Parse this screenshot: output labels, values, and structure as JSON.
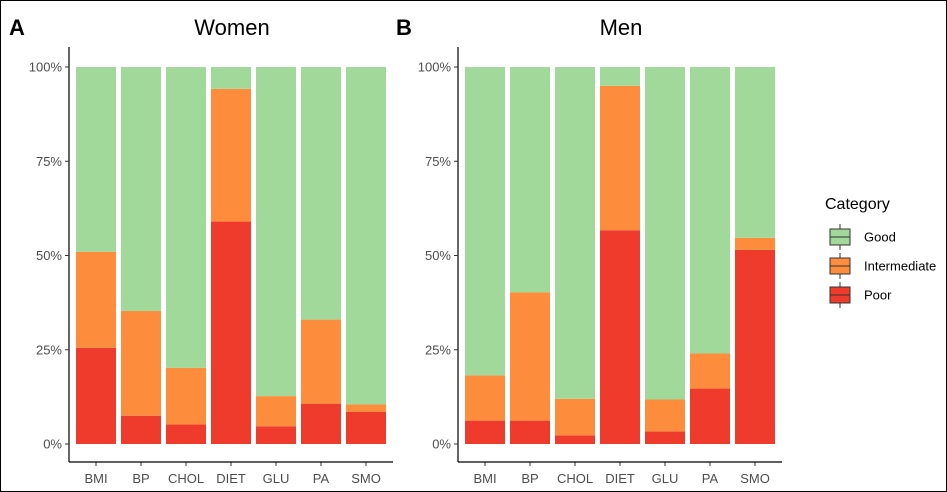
{
  "chart_data": [
    {
      "type": "bar",
      "stacked": true,
      "panel_label": "A",
      "title": "Women",
      "categories": [
        "BMI",
        "BP",
        "CHOL",
        "DIET",
        "GLU",
        "PA",
        "SMO"
      ],
      "series": [
        {
          "name": "Poor",
          "values": [
            0.255,
            0.075,
            0.052,
            0.59,
            0.047,
            0.107,
            0.085
          ]
        },
        {
          "name": "Intermediate",
          "values": [
            0.255,
            0.278,
            0.15,
            0.352,
            0.08,
            0.223,
            0.02
          ]
        },
        {
          "name": "Good",
          "values": [
            0.49,
            0.647,
            0.798,
            0.058,
            0.873,
            0.67,
            0.895
          ]
        }
      ],
      "ylim": [
        0,
        1
      ],
      "y_ticks": [
        "0%",
        "25%",
        "50%",
        "75%",
        "100%"
      ],
      "xlabel": "",
      "ylabel": "",
      "grid": false
    },
    {
      "type": "bar",
      "stacked": true,
      "panel_label": "B",
      "title": "Men",
      "categories": [
        "BMI",
        "BP",
        "CHOL",
        "DIET",
        "GLU",
        "PA",
        "SMO"
      ],
      "series": [
        {
          "name": "Poor",
          "values": [
            0.062,
            0.062,
            0.023,
            0.567,
            0.033,
            0.147,
            0.515
          ]
        },
        {
          "name": "Intermediate",
          "values": [
            0.12,
            0.34,
            0.097,
            0.383,
            0.085,
            0.093,
            0.032
          ]
        },
        {
          "name": "Good",
          "values": [
            0.818,
            0.598,
            0.88,
            0.05,
            0.882,
            0.76,
            0.453
          ]
        }
      ],
      "ylim": [
        0,
        1
      ],
      "y_ticks": [
        "0%",
        "25%",
        "50%",
        "75%",
        "100%"
      ],
      "xlabel": "",
      "ylabel": "",
      "grid": false
    }
  ],
  "legend": {
    "title": "Category",
    "position": "right",
    "entries": [
      {
        "name": "Good",
        "color": "#a1d99b"
      },
      {
        "name": "Intermediate",
        "color": "#fd8d3c"
      },
      {
        "name": "Poor",
        "color": "#ef3b2c"
      }
    ]
  }
}
